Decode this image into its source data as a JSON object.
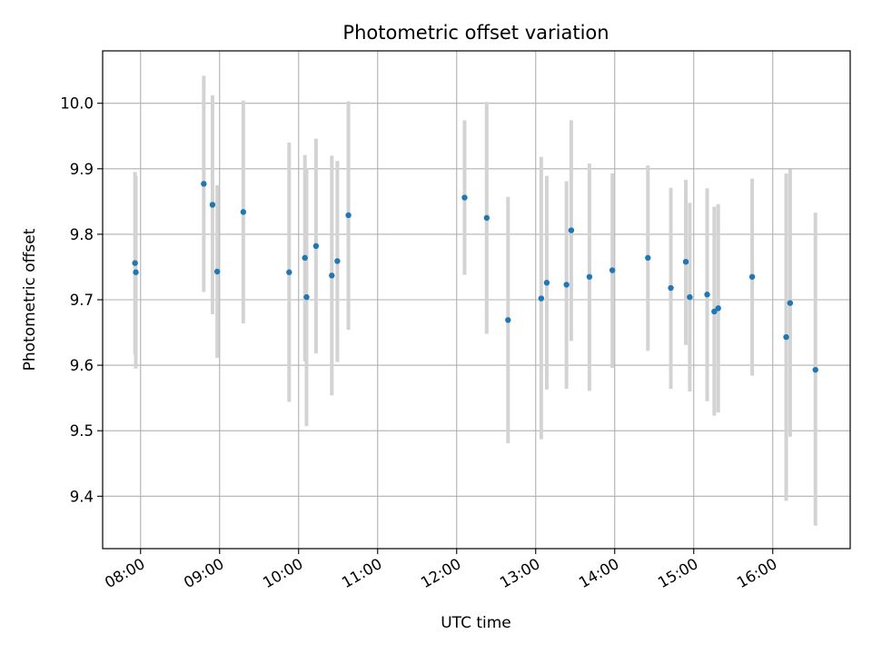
{
  "chart_data": {
    "type": "scatter",
    "title": "Photometric offset variation",
    "xlabel": "UTC time",
    "ylabel": "Photometric offset",
    "x_unit": "hours",
    "xlim": [
      7.52,
      16.98
    ],
    "ylim": [
      9.32,
      10.08
    ],
    "xticks": [
      {
        "value": 8,
        "label": "08:00"
      },
      {
        "value": 9,
        "label": "09:00"
      },
      {
        "value": 10,
        "label": "10:00"
      },
      {
        "value": 11,
        "label": "11:00"
      },
      {
        "value": 12,
        "label": "12:00"
      },
      {
        "value": 13,
        "label": "13:00"
      },
      {
        "value": 14,
        "label": "14:00"
      },
      {
        "value": 15,
        "label": "15:00"
      },
      {
        "value": 16,
        "label": "16:00"
      }
    ],
    "yticks": [
      {
        "value": 9.4,
        "label": "9.4"
      },
      {
        "value": 9.5,
        "label": "9.5"
      },
      {
        "value": 9.6,
        "label": "9.6"
      },
      {
        "value": 9.7,
        "label": "9.7"
      },
      {
        "value": 9.8,
        "label": "9.8"
      },
      {
        "value": 9.9,
        "label": "9.9"
      },
      {
        "value": 10.0,
        "label": "10.0"
      }
    ],
    "grid": true,
    "point_color": "#1f77b4",
    "errorbar_color": "#d3d3d3",
    "points": [
      {
        "x": 7.93,
        "y": 9.756,
        "low": 9.617,
        "high": 9.895
      },
      {
        "x": 7.94,
        "y": 9.742,
        "low": 9.595,
        "high": 9.889
      },
      {
        "x": 8.8,
        "y": 9.877,
        "low": 9.712,
        "high": 10.042
      },
      {
        "x": 8.91,
        "y": 9.845,
        "low": 9.678,
        "high": 10.012
      },
      {
        "x": 8.97,
        "y": 9.743,
        "low": 9.611,
        "high": 9.875
      },
      {
        "x": 9.3,
        "y": 9.834,
        "low": 9.664,
        "high": 10.004
      },
      {
        "x": 9.88,
        "y": 9.742,
        "low": 9.544,
        "high": 9.94
      },
      {
        "x": 10.08,
        "y": 9.764,
        "low": 9.606,
        "high": 9.921
      },
      {
        "x": 10.1,
        "y": 9.704,
        "low": 9.507,
        "high": 9.901
      },
      {
        "x": 10.22,
        "y": 9.782,
        "low": 9.618,
        "high": 9.946
      },
      {
        "x": 10.42,
        "y": 9.737,
        "low": 9.554,
        "high": 9.92
      },
      {
        "x": 10.49,
        "y": 9.759,
        "low": 9.605,
        "high": 9.912
      },
      {
        "x": 10.63,
        "y": 9.829,
        "low": 9.654,
        "high": 10.003
      },
      {
        "x": 12.1,
        "y": 9.856,
        "low": 9.738,
        "high": 9.974
      },
      {
        "x": 12.38,
        "y": 9.825,
        "low": 9.648,
        "high": 10.002
      },
      {
        "x": 12.65,
        "y": 9.669,
        "low": 9.481,
        "high": 9.857
      },
      {
        "x": 13.07,
        "y": 9.702,
        "low": 9.487,
        "high": 9.918
      },
      {
        "x": 13.14,
        "y": 9.726,
        "low": 9.563,
        "high": 9.889
      },
      {
        "x": 13.39,
        "y": 9.723,
        "low": 9.564,
        "high": 9.881
      },
      {
        "x": 13.45,
        "y": 9.806,
        "low": 9.637,
        "high": 9.974
      },
      {
        "x": 13.68,
        "y": 9.735,
        "low": 9.561,
        "high": 9.908
      },
      {
        "x": 13.97,
        "y": 9.745,
        "low": 9.596,
        "high": 9.893
      },
      {
        "x": 14.42,
        "y": 9.764,
        "low": 9.622,
        "high": 9.905
      },
      {
        "x": 14.71,
        "y": 9.718,
        "low": 9.564,
        "high": 9.871
      },
      {
        "x": 14.9,
        "y": 9.758,
        "low": 9.631,
        "high": 9.883
      },
      {
        "x": 14.95,
        "y": 9.704,
        "low": 9.56,
        "high": 9.848
      },
      {
        "x": 15.17,
        "y": 9.708,
        "low": 9.545,
        "high": 9.87
      },
      {
        "x": 15.26,
        "y": 9.682,
        "low": 9.523,
        "high": 9.842
      },
      {
        "x": 15.31,
        "y": 9.687,
        "low": 9.528,
        "high": 9.846
      },
      {
        "x": 15.74,
        "y": 9.735,
        "low": 9.584,
        "high": 9.885
      },
      {
        "x": 16.17,
        "y": 9.643,
        "low": 9.393,
        "high": 9.893
      },
      {
        "x": 16.22,
        "y": 9.695,
        "low": 9.491,
        "high": 9.899
      },
      {
        "x": 16.54,
        "y": 9.593,
        "low": 9.355,
        "high": 9.833
      }
    ]
  }
}
